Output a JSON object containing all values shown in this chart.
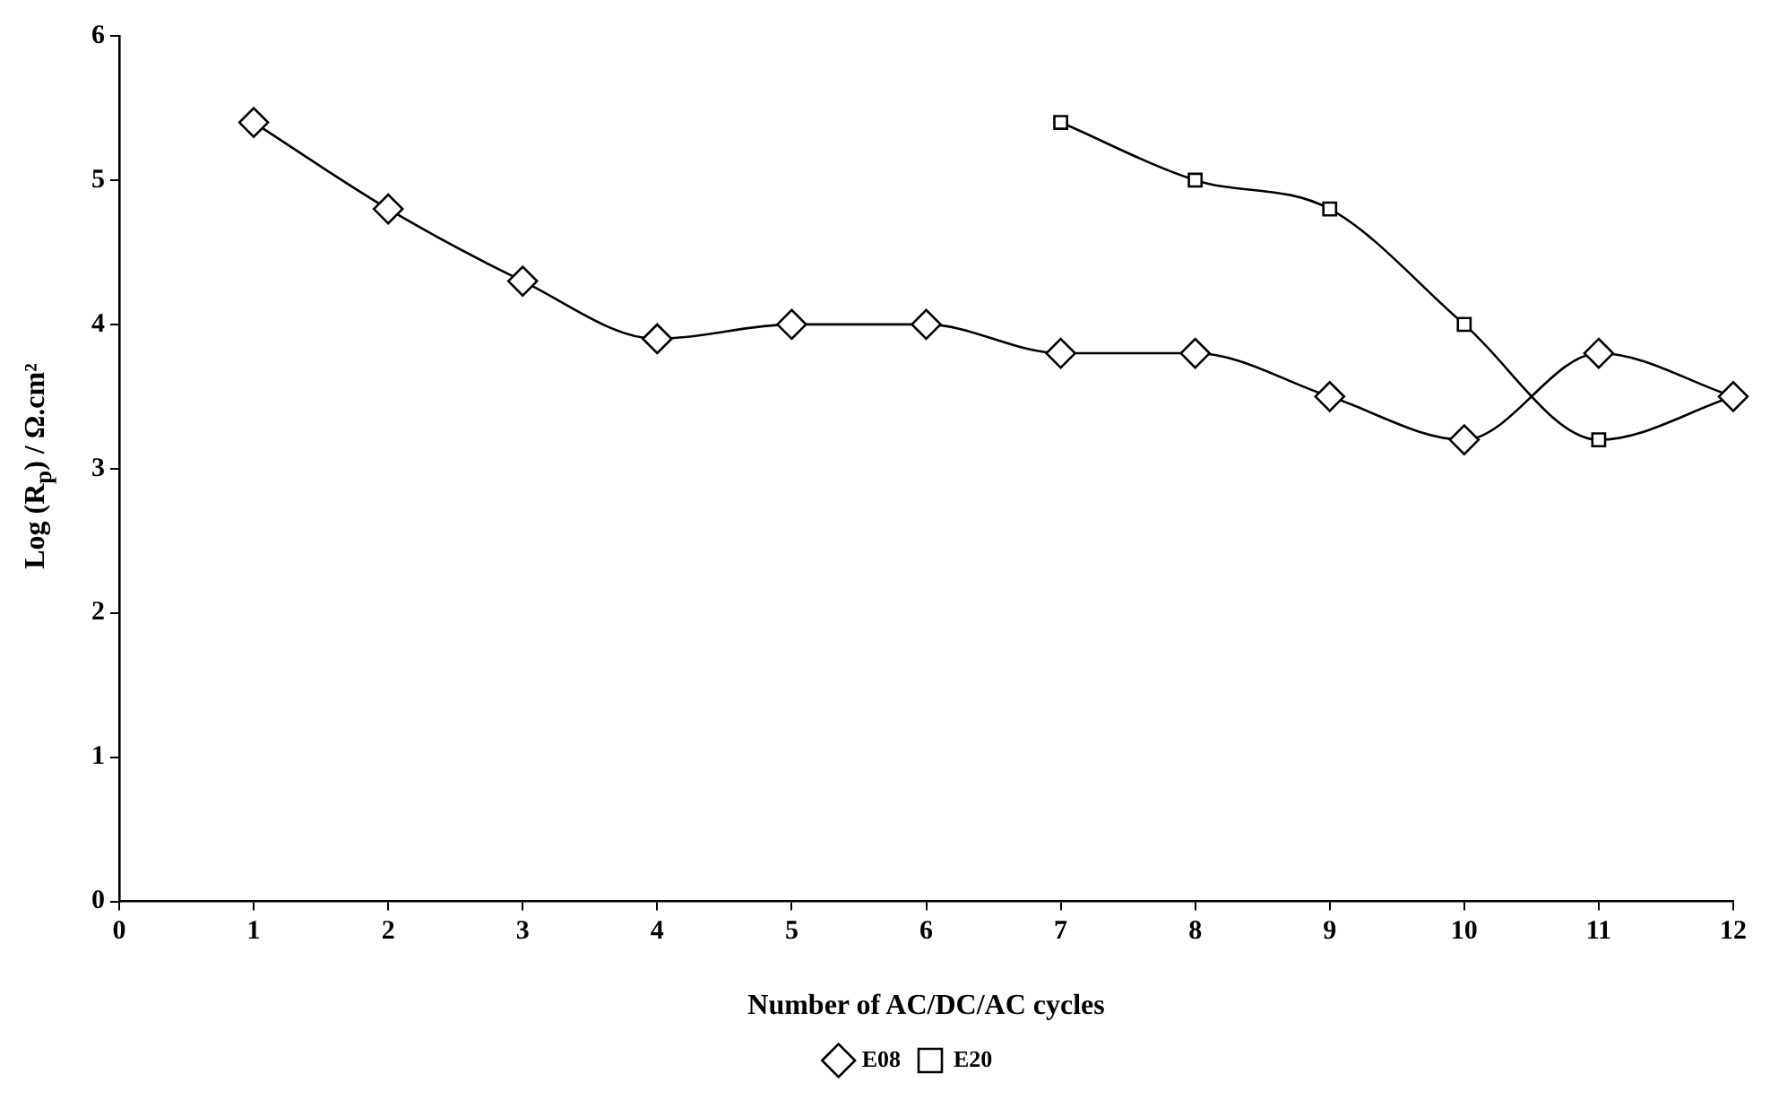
{
  "chart_data": {
    "type": "line",
    "xlabel": "Number of AC/DC/AC cycles",
    "ylabel": "Log (R$_{p}$) / Ω.cm²",
    "xlim": [
      0,
      12
    ],
    "xticks": [
      0,
      1,
      2,
      3,
      4,
      5,
      6,
      7,
      8,
      9,
      10,
      11,
      12
    ],
    "ylim": [
      0,
      6
    ],
    "yticks": [
      0,
      1,
      2,
      3,
      4,
      5,
      6
    ],
    "grid": false,
    "legend": "bottom",
    "series": [
      {
        "name": "E08",
        "color": "#000000",
        "marker": "diamond",
        "x": [
          1,
          2,
          3,
          4,
          5,
          6,
          7,
          8,
          9,
          10,
          11,
          12
        ],
        "values": [
          5.4,
          4.8,
          4.3,
          3.9,
          4.0,
          4.0,
          3.8,
          3.8,
          3.5,
          3.2,
          3.8,
          3.5
        ]
      },
      {
        "name": "E20",
        "color": "#000000",
        "marker": "square",
        "x": [
          7,
          8,
          9,
          10,
          11,
          12
        ],
        "values": [
          5.4,
          5.0,
          4.8,
          4.0,
          3.2,
          3.5
        ]
      }
    ]
  }
}
